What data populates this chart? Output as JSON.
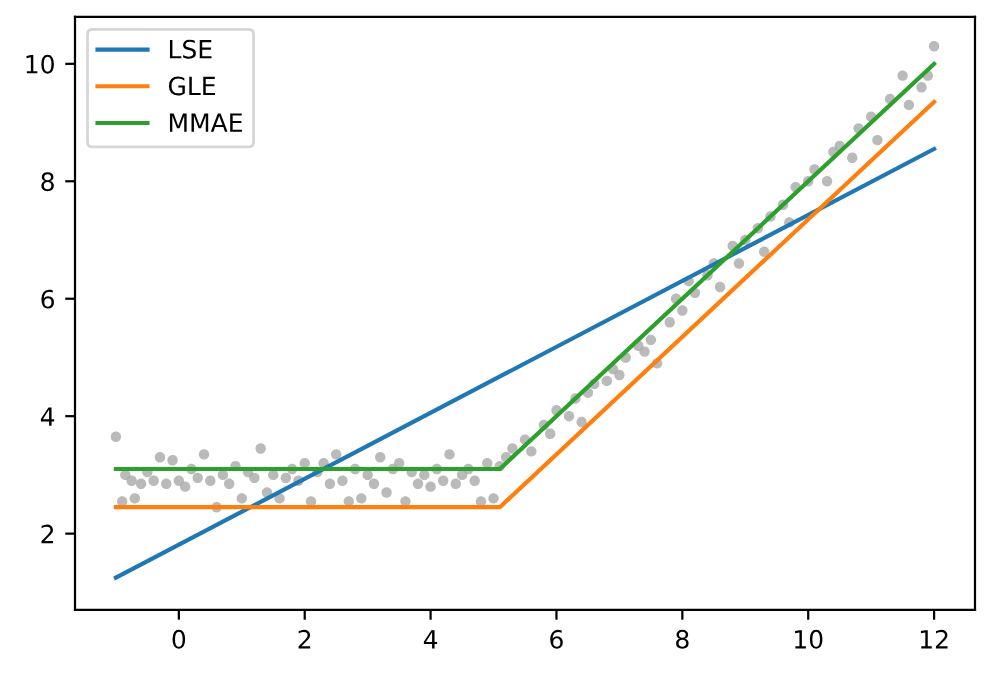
{
  "chart_data": {
    "type": "line",
    "xlim": [
      -1.65,
      12.65
    ],
    "ylim": [
      0.7,
      10.8
    ],
    "xticks": [
      0,
      2,
      4,
      6,
      8,
      10,
      12
    ],
    "yticks": [
      2,
      4,
      6,
      8,
      10
    ],
    "grid": false,
    "legend": "top left",
    "series": [
      {
        "type": "scatter",
        "color": "#a9a9a9",
        "marker": "circle",
        "x": [
          -1,
          -0.9,
          -0.85,
          -0.75,
          -0.7,
          -0.6,
          -0.5,
          -0.4,
          -0.3,
          -0.2,
          -0.1,
          0,
          0.1,
          0.2,
          0.3,
          0.4,
          0.5,
          0.6,
          0.7,
          0.8,
          0.9,
          1.0,
          1.1,
          1.2,
          1.3,
          1.4,
          1.5,
          1.6,
          1.7,
          1.8,
          1.9,
          2.0,
          2.1,
          2.2,
          2.3,
          2.4,
          2.5,
          2.6,
          2.7,
          2.8,
          2.9,
          3.0,
          3.1,
          3.2,
          3.3,
          3.4,
          3.5,
          3.6,
          3.7,
          3.8,
          3.9,
          4.0,
          4.1,
          4.2,
          4.3,
          4.4,
          4.5,
          4.6,
          4.7,
          4.8,
          4.9,
          5.0,
          5.1,
          5.2,
          5.3,
          5.5,
          5.6,
          5.8,
          5.9,
          6.0,
          6.2,
          6.3,
          6.4,
          6.5,
          6.6,
          6.8,
          6.9,
          7.0,
          7.1,
          7.3,
          7.4,
          7.5,
          7.6,
          7.8,
          7.9,
          8.0,
          8.1,
          8.2,
          8.4,
          8.5,
          8.6,
          8.8,
          8.9,
          9.0,
          9.2,
          9.3,
          9.4,
          9.6,
          9.7,
          9.8,
          10.0,
          10.1,
          10.3,
          10.4,
          10.5,
          10.7,
          10.8,
          11.0,
          11.1,
          11.3,
          11.5,
          11.6,
          11.8,
          11.9,
          12.0
        ],
        "values": [
          3.65,
          2.55,
          3.0,
          2.9,
          2.6,
          2.85,
          3.05,
          2.9,
          3.3,
          2.85,
          3.25,
          2.9,
          2.8,
          3.1,
          2.95,
          3.35,
          2.9,
          2.45,
          3.0,
          2.85,
          3.15,
          2.6,
          3.05,
          2.95,
          3.45,
          2.7,
          3.0,
          2.6,
          2.95,
          3.1,
          2.9,
          3.2,
          2.55,
          3.05,
          3.2,
          2.85,
          3.35,
          2.9,
          2.55,
          3.1,
          2.6,
          3.0,
          2.85,
          3.3,
          2.7,
          3.1,
          3.2,
          2.55,
          3.05,
          2.85,
          3.0,
          2.8,
          3.1,
          2.9,
          3.35,
          2.85,
          3.0,
          3.1,
          2.9,
          2.55,
          3.2,
          2.6,
          3.15,
          3.3,
          3.45,
          3.6,
          3.4,
          3.85,
          3.7,
          4.1,
          4.0,
          4.3,
          3.9,
          4.4,
          4.55,
          4.6,
          4.8,
          4.7,
          5.0,
          5.2,
          5.1,
          5.3,
          4.9,
          5.6,
          6.0,
          5.8,
          6.3,
          6.1,
          6.4,
          6.6,
          6.2,
          6.9,
          6.6,
          7.0,
          7.2,
          6.8,
          7.4,
          7.6,
          7.3,
          7.9,
          8.0,
          8.2,
          8.0,
          8.5,
          8.6,
          8.4,
          8.9,
          9.1,
          8.7,
          9.4,
          9.8,
          9.3,
          9.6,
          9.8,
          10.3
        ]
      },
      {
        "name": "LSE",
        "color": "#1f77b4",
        "x": [
          -1,
          12
        ],
        "values": [
          1.25,
          8.55
        ]
      },
      {
        "name": "GLE",
        "color": "#ff7f0e",
        "x": [
          -1,
          5.1,
          12
        ],
        "values": [
          2.45,
          2.45,
          9.35
        ]
      },
      {
        "name": "MMAE",
        "color": "#2ca02c",
        "x": [
          -1,
          5.1,
          12
        ],
        "values": [
          3.1,
          3.1,
          10.0
        ]
      }
    ]
  }
}
